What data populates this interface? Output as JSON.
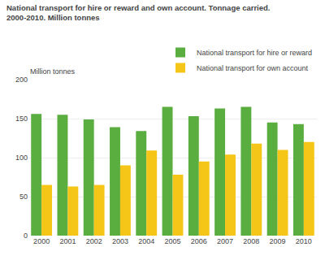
{
  "chart_data": {
    "type": "bar",
    "title": "National transport for hire or reward and own account. Tonnage carried.",
    "subtitle": "2000-2010. Million tonnes",
    "ylabel": "Million tonnes",
    "categories": [
      "2000",
      "2001",
      "2002",
      "2003",
      "2004",
      "2005",
      "2006",
      "2007",
      "2008",
      "2009",
      "2010"
    ],
    "series": [
      {
        "name": "National transport for hire or reward",
        "color": "#5aad3f",
        "values": [
          156,
          155,
          149,
          139,
          134,
          165,
          153,
          163,
          165,
          145,
          143
        ]
      },
      {
        "name": "National transport for own account",
        "color": "#f5c518",
        "values": [
          65,
          63,
          65,
          90,
          109,
          78,
          95,
          104,
          118,
          110,
          120
        ]
      }
    ],
    "ylim": [
      0,
      200
    ],
    "yticks": [
      0,
      50,
      100,
      150,
      200
    ],
    "grid": true,
    "legend": "upper right"
  }
}
